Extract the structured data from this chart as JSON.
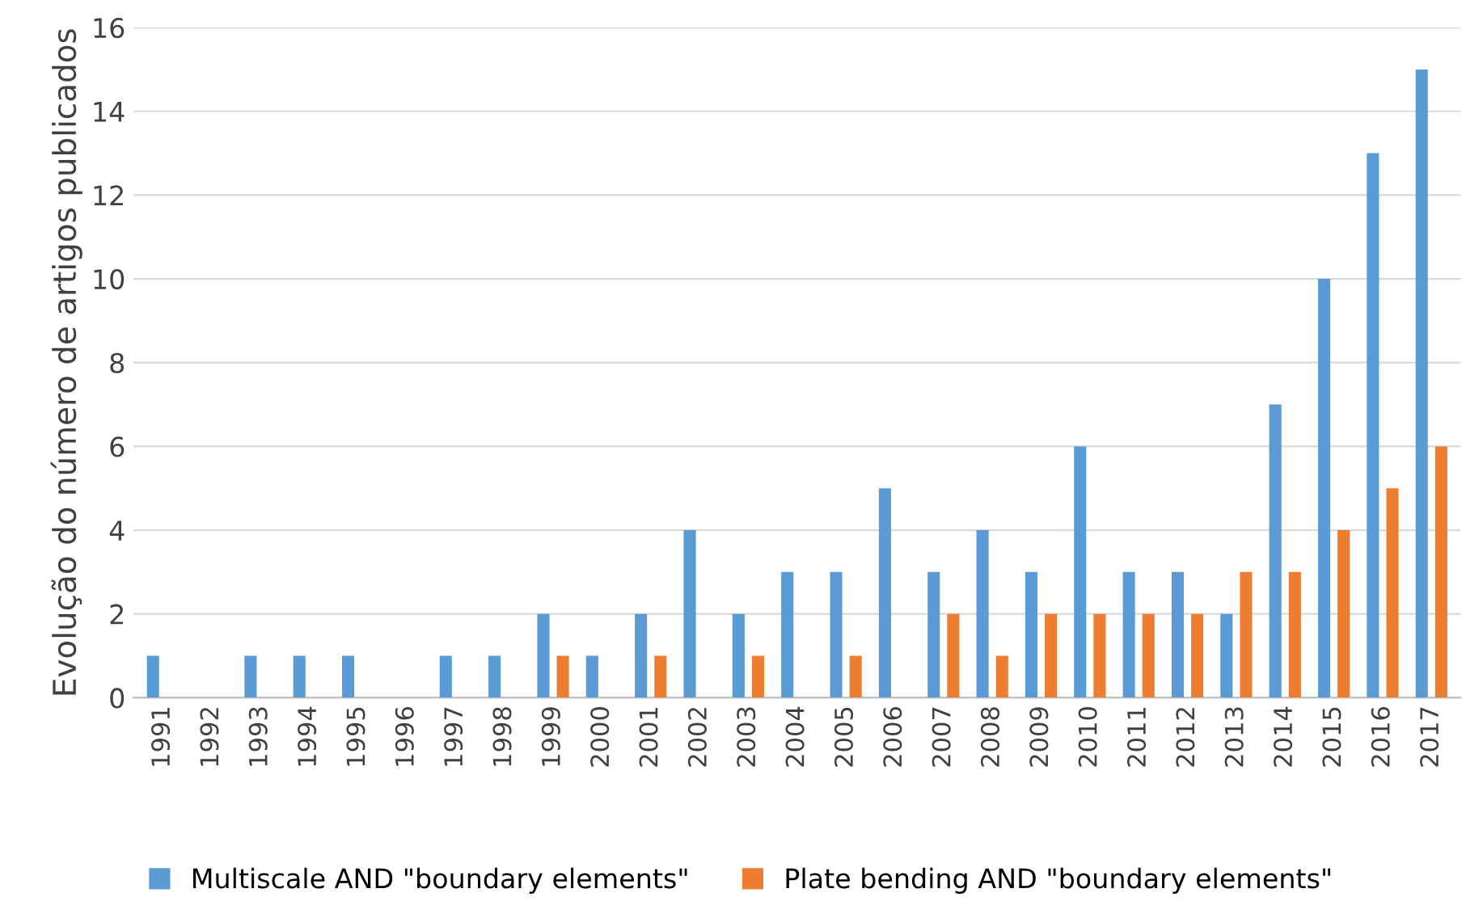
{
  "chart_data": {
    "type": "bar",
    "ylabel": "Evolução do número de artigos publicados",
    "categories": [
      "1991",
      "1992",
      "1993",
      "1994",
      "1995",
      "1996",
      "1997",
      "1998",
      "1999",
      "2000",
      "2001",
      "2002",
      "2003",
      "2004",
      "2005",
      "2006",
      "2007",
      "2008",
      "2009",
      "2010",
      "2011",
      "2012",
      "2013",
      "2014",
      "2015",
      "2016",
      "2017"
    ],
    "series": [
      {
        "name": "Multiscale AND \"boundary elements\"",
        "color": "#5b9bd5",
        "values": [
          1,
          0,
          1,
          1,
          1,
          0,
          1,
          1,
          2,
          1,
          2,
          4,
          2,
          3,
          3,
          5,
          3,
          4,
          3,
          6,
          3,
          3,
          2,
          7,
          10,
          13,
          15
        ]
      },
      {
        "name": "Plate bending AND \"boundary elements\"",
        "color": "#ed7d31",
        "values": [
          0,
          0,
          0,
          0,
          0,
          0,
          0,
          0,
          1,
          0,
          1,
          0,
          1,
          0,
          1,
          0,
          2,
          1,
          2,
          2,
          2,
          2,
          3,
          3,
          4,
          5,
          6
        ]
      }
    ],
    "ylim": [
      0,
      16
    ],
    "yticks": [
      0,
      2,
      4,
      6,
      8,
      10,
      12,
      14,
      16
    ],
    "grid": "y",
    "legend": "bottom"
  }
}
